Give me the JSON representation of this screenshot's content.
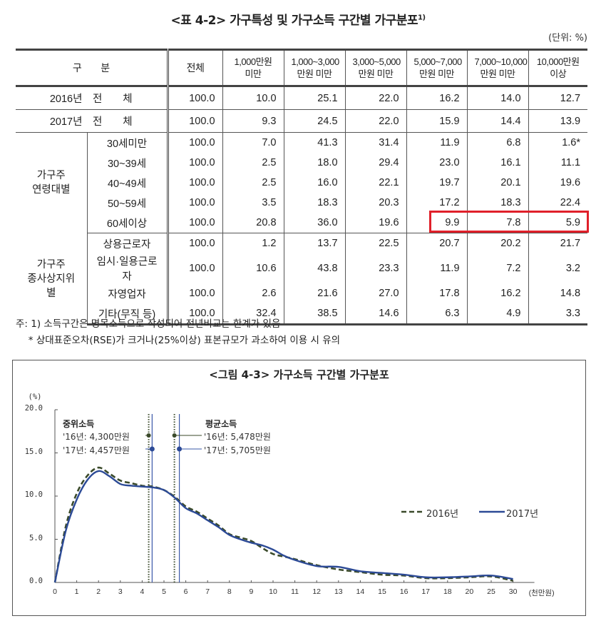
{
  "table": {
    "title": "<표 4-2> 가구특성 및 가구소득 구간별 가구분포",
    "title_footnote": "1)",
    "unit": "(단위: %)",
    "headers": {
      "category": "구　　분",
      "total": "전체",
      "bins": [
        {
          "line1": "1,000만원",
          "line2": "미만"
        },
        {
          "line1": "1,000~3,000",
          "line2": "만원 미만"
        },
        {
          "line1": "3,000~5,000",
          "line2": "만원 미만"
        },
        {
          "line1": "5,000~7,000",
          "line2": "만원 미만"
        },
        {
          "line1": "7,000~10,000",
          "line2": "만원 미만"
        },
        {
          "line1": "10,000만원",
          "line2": "이상"
        }
      ]
    },
    "summary_rows": [
      {
        "label": "2016년　전　　체",
        "values": [
          "100.0",
          "10.0",
          "25.1",
          "22.0",
          "16.2",
          "14.0",
          "12.7"
        ]
      },
      {
        "label": "2017년　전　　체",
        "values": [
          "100.0",
          "9.3",
          "24.5",
          "22.0",
          "15.9",
          "14.4",
          "13.9"
        ]
      }
    ],
    "groups": [
      {
        "label_line1": "가구주",
        "label_line2": "연령대별",
        "rows": [
          {
            "label": "30세미만",
            "values": [
              "100.0",
              "7.0",
              "41.3",
              "31.4",
              "11.9",
              "6.8",
              "1.6*"
            ]
          },
          {
            "label": "30~39세",
            "values": [
              "100.0",
              "2.5",
              "18.0",
              "29.4",
              "23.0",
              "16.1",
              "11.1"
            ]
          },
          {
            "label": "40~49세",
            "values": [
              "100.0",
              "2.5",
              "16.0",
              "22.1",
              "19.7",
              "20.1",
              "19.6"
            ]
          },
          {
            "label": "50~59세",
            "values": [
              "100.0",
              "3.5",
              "18.3",
              "20.3",
              "17.2",
              "18.3",
              "22.4"
            ]
          },
          {
            "label": "60세이상",
            "values": [
              "100.0",
              "20.8",
              "36.0",
              "19.6",
              "9.9",
              "7.8",
              "5.9"
            ]
          }
        ]
      },
      {
        "label_line1": "가구주",
        "label_line2": "종사상지위별",
        "rows": [
          {
            "label": "상용근로자",
            "values": [
              "100.0",
              "1.2",
              "13.7",
              "22.5",
              "20.7",
              "20.2",
              "21.7"
            ]
          },
          {
            "label": "임시·일용근로자",
            "values": [
              "100.0",
              "10.6",
              "43.8",
              "23.3",
              "11.9",
              "7.2",
              "3.2"
            ]
          },
          {
            "label": "자영업자",
            "values": [
              "100.0",
              "2.6",
              "21.6",
              "27.0",
              "17.8",
              "16.2",
              "14.8"
            ]
          },
          {
            "label": "기타(무직 등)",
            "values": [
              "100.0",
              "32.4",
              "38.5",
              "14.6",
              "6.3",
              "4.9",
              "3.3"
            ]
          }
        ]
      }
    ],
    "highlight": {
      "row": "60세이상",
      "columns": [
        "5,000~7,000",
        "7,000~10,000",
        "10,000만원 이상"
      ],
      "color": "#e0202a"
    },
    "notes": [
      "주: 1) 소득구간은 명목소득으로 작성되어 전년비교는 한계가 있음",
      "　 * 상대표준오차(RSE)가 크거나(25%이상) 표본규모가 과소하여 이용 시 유의"
    ]
  },
  "chart_data": {
    "type": "line",
    "title": "<그림 4-3> 가구소득 구간별 가구분포",
    "ylabel": "(%)",
    "xlabel": "(천만원)",
    "ylim": [
      0,
      20
    ],
    "y_ticks": [
      "20.0",
      "15.0",
      "10.0",
      "5.0",
      "0.0"
    ],
    "x_ticks": [
      "0",
      "1",
      "2",
      "3",
      "4",
      "5",
      "6",
      "7",
      "8",
      "9",
      "10",
      "11",
      "12",
      "13",
      "14",
      "15",
      "16",
      "17",
      "18",
      "20",
      "25",
      "30"
    ],
    "grid": false,
    "legend_position": "right-middle",
    "x": [
      0,
      0.5,
      1,
      1.5,
      2,
      2.5,
      3,
      3.5,
      4,
      4.5,
      5,
      5.5,
      6,
      6.5,
      7,
      7.5,
      8,
      8.5,
      9,
      9.5,
      10,
      10.5,
      11,
      12,
      13,
      14,
      15,
      16,
      17,
      18,
      20,
      25,
      30
    ],
    "series": [
      {
        "name": "2016년",
        "style": "dashed",
        "color": "#3a4a2a",
        "values": [
          0,
          6.5,
          10.3,
          12.4,
          13.3,
          12.6,
          11.8,
          11.5,
          11.2,
          11.1,
          10.7,
          9.9,
          8.8,
          8.2,
          7.4,
          6.6,
          5.6,
          5.2,
          4.8,
          4.0,
          3.3,
          3.0,
          2.7,
          2.0,
          1.5,
          1.2,
          0.9,
          0.8,
          0.5,
          0.5,
          0.6,
          0.7,
          0.2
        ]
      },
      {
        "name": "2017년",
        "style": "solid",
        "color": "#2c4a96",
        "values": [
          0,
          6.0,
          9.6,
          11.9,
          12.9,
          12.3,
          11.4,
          11.2,
          11.1,
          11.0,
          10.7,
          9.8,
          8.6,
          8.0,
          7.2,
          6.4,
          5.5,
          5.0,
          4.6,
          4.3,
          3.8,
          3.1,
          2.6,
          1.9,
          1.8,
          1.3,
          1.1,
          0.9,
          0.6,
          0.6,
          0.7,
          0.8,
          0.4
        ]
      }
    ],
    "annotations": {
      "median": {
        "title": "중위소득",
        "y16": "'16년: 4,300만원",
        "y17": "'17년: 4,457만원",
        "x16": 4.3,
        "x17": 4.457
      },
      "mean": {
        "title": "평균소득",
        "y16": "'16년: 5,478만원",
        "y17": "'17년: 5,705만원",
        "x16": 5.478,
        "x17": 5.705
      }
    },
    "legend": [
      "2016년",
      "2017년"
    ]
  }
}
